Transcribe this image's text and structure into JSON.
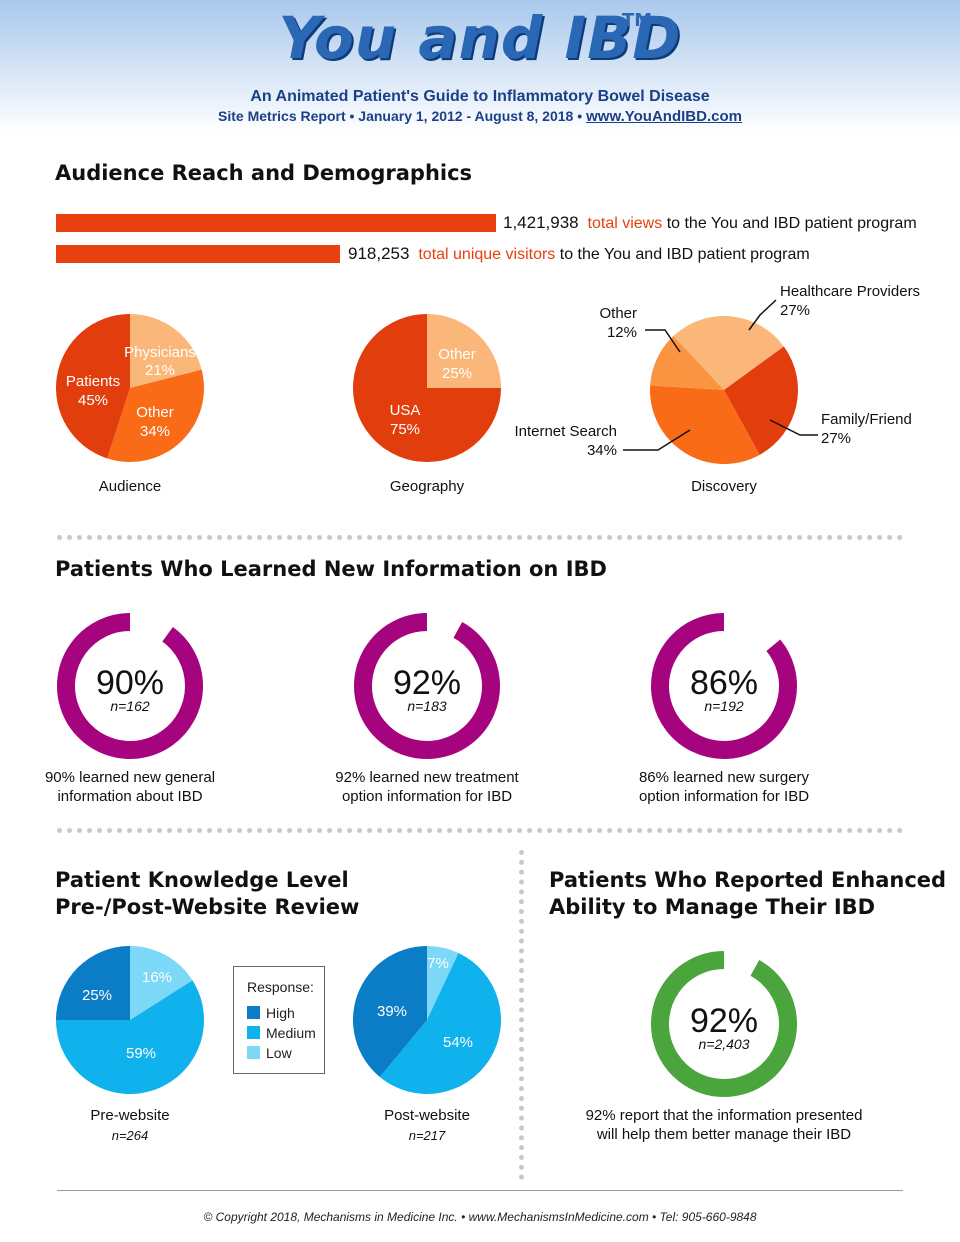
{
  "header": {
    "logo": "You and IBD",
    "tm": "TM",
    "subtitle": "An Animated Patient's Guide to Inflammatory Bowel Disease",
    "report_line": "Site Metrics Report • January 1, 2012 - August 8, 2018 •",
    "url": "www.YouAndIBD.com"
  },
  "sections": {
    "audience": "Audience Reach and Demographics",
    "learned": "Patients Who Learned New Information on IBD",
    "knowledge_l1": "Patient Knowledge Level",
    "knowledge_l2": "Pre-/Post-Website Review",
    "enhanced_l1": "Patients Who Reported Enhanced",
    "enhanced_l2": "Ability to Manage Their IBD"
  },
  "reach": {
    "views_num": "1,421,938",
    "views_hl": "total views",
    "views_rest": "to the You and IBD patient program",
    "visitors_num": "918,253",
    "visitors_hl": "total unique visitors",
    "visitors_rest": "to the You and IBD patient program"
  },
  "colors": {
    "dark_orange": "#e23d0c",
    "mid_orange": "#f96b16",
    "light_orange": "#fbb679",
    "magenta": "#a6047f",
    "green": "#4aa63c",
    "blue_high": "#0b7cc6",
    "blue_medium": "#0fb2ec",
    "blue_low": "#7dd7f7"
  },
  "chart_data": [
    {
      "type": "bar",
      "categories": [
        "total views",
        "total unique visitors"
      ],
      "values": [
        1421938,
        918253
      ]
    },
    {
      "type": "pie",
      "title": "Audience",
      "slices": [
        {
          "label": "Physicians",
          "value": 21,
          "text": "21%",
          "color": "#fbb679"
        },
        {
          "label": "Other",
          "value": 34,
          "text": "34%",
          "color": "#f96b16"
        },
        {
          "label": "Patients",
          "value": 45,
          "text": "45%",
          "color": "#e23d0c"
        }
      ]
    },
    {
      "type": "pie",
      "title": "Geography",
      "slices": [
        {
          "label": "Other",
          "value": 25,
          "text": "25%",
          "color": "#fbb679"
        },
        {
          "label": "USA",
          "value": 75,
          "text": "75%",
          "color": "#e23d0c"
        }
      ]
    },
    {
      "type": "pie",
      "title": "Discovery",
      "slices": [
        {
          "label": "Healthcare Providers",
          "value": 27,
          "text": "27%",
          "color": "#fbb679"
        },
        {
          "label": "Family/Friend",
          "value": 27,
          "text": "27%",
          "color": "#e23d0c"
        },
        {
          "label": "Internet Search",
          "value": 34,
          "text": "34%",
          "color": "#f96b16"
        },
        {
          "label": "Other",
          "value": 12,
          "text": "12%",
          "color": "#fb9440"
        }
      ]
    },
    {
      "type": "donut",
      "value": 90,
      "value_text": "90%",
      "n": "n=162",
      "caption_l1": "90% learned new general",
      "caption_l2": "information about IBD",
      "color": "#a6047f"
    },
    {
      "type": "donut",
      "value": 92,
      "value_text": "92%",
      "n": "n=183",
      "caption_l1": "92% learned new treatment",
      "caption_l2": "option information for IBD",
      "color": "#a6047f"
    },
    {
      "type": "donut",
      "value": 86,
      "value_text": "86%",
      "n": "n=192",
      "caption_l1": "86% learned new surgery",
      "caption_l2": "option information for IBD",
      "color": "#a6047f"
    },
    {
      "type": "pie",
      "title": "Pre-website",
      "n": "n=264",
      "slices": [
        {
          "label": "Low",
          "value": 16,
          "text": "16%",
          "color": "#7dd7f7"
        },
        {
          "label": "Medium",
          "value": 59,
          "text": "59%",
          "color": "#0fb2ec"
        },
        {
          "label": "High",
          "value": 25,
          "text": "25%",
          "color": "#0b7cc6"
        }
      ]
    },
    {
      "type": "pie",
      "title": "Post-website",
      "n": "n=217",
      "slices": [
        {
          "label": "Low",
          "value": 7,
          "text": "7%",
          "color": "#7dd7f7"
        },
        {
          "label": "Medium",
          "value": 54,
          "text": "54%",
          "color": "#0fb2ec"
        },
        {
          "label": "High",
          "value": 39,
          "text": "39%",
          "color": "#0b7cc6"
        }
      ]
    },
    {
      "type": "donut",
      "value": 92,
      "value_text": "92%",
      "n": "n=2,403",
      "caption_l1": "92% report that the information presented",
      "caption_l2": "will help them better manage their IBD",
      "color": "#4aa63c"
    }
  ],
  "legend": {
    "title": "Response:",
    "items": [
      "High",
      "Medium",
      "Low"
    ]
  },
  "footer": "© Copyright 2018, Mechanisms in Medicine Inc. • www.MechanismsInMedicine.com • Tel: 905-660-9848"
}
